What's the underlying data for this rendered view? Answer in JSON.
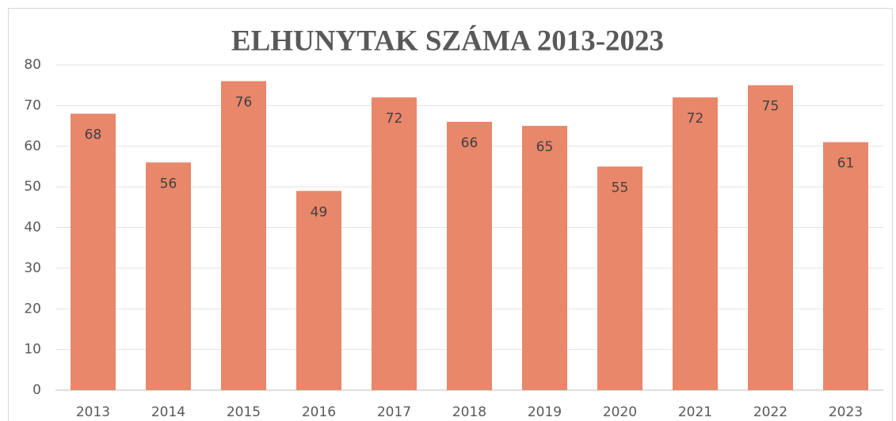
{
  "chart_data": {
    "type": "bar",
    "title": "ELHUNYTAK SZÁMA 2013-2023",
    "categories": [
      "2013",
      "2014",
      "2015",
      "2016",
      "2017",
      "2018",
      "2019",
      "2020",
      "2021",
      "2022",
      "2023"
    ],
    "values": [
      68,
      56,
      76,
      49,
      72,
      66,
      65,
      55,
      72,
      75,
      61
    ],
    "color": "#e8876a",
    "ylim": [
      0,
      80
    ],
    "yticks": [
      0,
      10,
      20,
      30,
      40,
      50,
      60,
      70,
      80
    ],
    "grid": true
  }
}
